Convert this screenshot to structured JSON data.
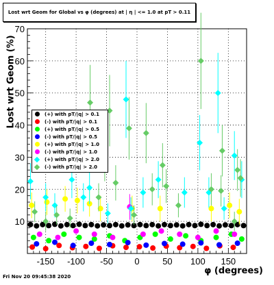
{
  "title": "Lost wrt Geom for Global vs φ (degrees) at | η | <= 1.0 at pT > 0.11",
  "footer": "Fri Nov 20 09:45:38 2020",
  "chart_data": {
    "type": "scatter",
    "xlabel": "φ (degrees)",
    "ylabel": "Lost wrt Geom (%)",
    "xlim": [
      -180,
      180
    ],
    "ylim": [
      0,
      70
    ],
    "xticks": [
      -150,
      -100,
      -50,
      0,
      50,
      100,
      150
    ],
    "yticks": [
      10,
      20,
      30,
      40,
      50,
      60,
      70
    ],
    "grid": true,
    "legend_position": "left",
    "series": [
      {
        "name": "(+) with pT/|q| > 0.1",
        "color": "#000000",
        "marker": "dot",
        "points": [
          [
            -175,
            9
          ],
          [
            -165,
            8.6
          ],
          [
            -155,
            9
          ],
          [
            -145,
            8.7
          ],
          [
            -135,
            9.1
          ],
          [
            -125,
            8.6
          ],
          [
            -115,
            9
          ],
          [
            -105,
            8.7
          ],
          [
            -95,
            9.1
          ],
          [
            -85,
            8.7
          ],
          [
            -75,
            9
          ],
          [
            -65,
            8.6
          ],
          [
            -55,
            8.9
          ],
          [
            -45,
            8.7
          ],
          [
            -35,
            9
          ],
          [
            -25,
            8.6
          ],
          [
            -15,
            8.9
          ],
          [
            -5,
            8.7
          ],
          [
            5,
            9
          ],
          [
            15,
            8.7
          ],
          [
            25,
            9
          ],
          [
            35,
            8.6
          ],
          [
            45,
            9
          ],
          [
            55,
            8.7
          ],
          [
            65,
            8.9
          ],
          [
            75,
            8.6
          ],
          [
            85,
            9
          ],
          [
            95,
            8.7
          ],
          [
            105,
            9.1
          ],
          [
            115,
            8.7
          ],
          [
            125,
            9
          ],
          [
            135,
            8.6
          ],
          [
            145,
            8.9
          ],
          [
            155,
            8.7
          ],
          [
            165,
            9
          ],
          [
            175,
            8.7
          ]
        ]
      },
      {
        "name": "(-) with pT/|q| > 0.1",
        "color": "#ff0000",
        "marker": "dot",
        "points": [
          [
            -172,
            2
          ],
          [
            -150,
            1.5
          ],
          [
            -128,
            2.5
          ],
          [
            -106,
            1.8
          ],
          [
            -84,
            2.2
          ],
          [
            -62,
            1.6
          ],
          [
            -40,
            2.4
          ],
          [
            -18,
            1.9
          ],
          [
            4,
            2.1
          ],
          [
            26,
            1.7
          ],
          [
            48,
            2.3
          ],
          [
            70,
            1.8
          ],
          [
            92,
            2.2
          ],
          [
            114,
            1.6
          ],
          [
            136,
            2.4
          ],
          [
            158,
            1.9
          ]
        ]
      },
      {
        "name": "(+) with pT/|q| > 0.5",
        "color": "#00ff00",
        "marker": "dot",
        "points": [
          [
            -170,
            5
          ],
          [
            -145,
            4
          ],
          [
            -120,
            6
          ],
          [
            -95,
            5
          ],
          [
            -70,
            4.5
          ],
          [
            -45,
            5.5
          ],
          [
            -20,
            4
          ],
          [
            5,
            5
          ],
          [
            30,
            6
          ],
          [
            55,
            4.5
          ],
          [
            80,
            5.5
          ],
          [
            105,
            4
          ],
          [
            130,
            5
          ],
          [
            155,
            6
          ],
          [
            172,
            4.5
          ]
        ]
      },
      {
        "name": "(-) with pT/|q| > 0.5",
        "color": "#0000ff",
        "marker": "dot",
        "points": [
          [
            -165,
            3
          ],
          [
            -135,
            3.5
          ],
          [
            -105,
            2.5
          ],
          [
            -75,
            3.2
          ],
          [
            -45,
            2.8
          ],
          [
            -15,
            3.4
          ],
          [
            15,
            2.6
          ],
          [
            45,
            3.1
          ],
          [
            75,
            2.9
          ],
          [
            105,
            3.3
          ],
          [
            135,
            2.7
          ],
          [
            165,
            3.2
          ]
        ]
      },
      {
        "name": "(+) with pT/|q| > 1.0",
        "color": "#ffff00",
        "marker": "dot",
        "points": [
          [
            -173,
            15
          ],
          [
            -148,
            16
          ],
          [
            -118,
            17
          ],
          [
            -98,
            16.5
          ],
          [
            -78,
            15.5
          ],
          [
            -60,
            14
          ],
          [
            -8,
            14
          ],
          [
            38,
            14
          ],
          [
            122,
            14
          ],
          [
            152,
            15
          ],
          [
            168,
            13
          ]
        ]
      },
      {
        "name": "(-) with pT/|q| > 1.0",
        "color": "#ff00ff",
        "marker": "dot",
        "points": [
          [
            -160,
            6
          ],
          [
            -130,
            5
          ],
          [
            -100,
            7
          ],
          [
            -70,
            6
          ],
          [
            -40,
            5
          ],
          [
            -12,
            14.5
          ],
          [
            10,
            6
          ],
          [
            40,
            7
          ],
          [
            70,
            6
          ],
          [
            100,
            5
          ],
          [
            130,
            7
          ],
          [
            160,
            6
          ]
        ]
      },
      {
        "name": "(+) with pT/|q| > 2.0",
        "color": "#00ffff",
        "marker": "diamond",
        "points": [
          [
            -175,
            22.5
          ],
          [
            -150,
            17.5
          ],
          [
            -135,
            15
          ],
          [
            -107,
            23
          ],
          [
            -88,
            17.5
          ],
          [
            -78,
            20.5
          ],
          [
            -48,
            12.5
          ],
          [
            -18,
            48
          ],
          [
            -10,
            14
          ],
          [
            10,
            19
          ],
          [
            35,
            23
          ],
          [
            78,
            19
          ],
          [
            103,
            34.5
          ],
          [
            118,
            19
          ],
          [
            133,
            50
          ],
          [
            143,
            14
          ],
          [
            160,
            30.5
          ],
          [
            172,
            23
          ]
        ]
      },
      {
        "name": "(-) with pT/|q| > 2.0",
        "color": "#66cc66",
        "marker": "diamond",
        "points": [
          [
            -168,
            13
          ],
          [
            -150,
            10
          ],
          [
            -132,
            12
          ],
          [
            -110,
            11
          ],
          [
            -77,
            47
          ],
          [
            -63,
            17.5
          ],
          [
            -53,
            30
          ],
          [
            -45,
            44.5
          ],
          [
            -35,
            22
          ],
          [
            -13,
            39
          ],
          [
            -5,
            12
          ],
          [
            15,
            37.5
          ],
          [
            25,
            20
          ],
          [
            42,
            27.5
          ],
          [
            48,
            21
          ],
          [
            68,
            15
          ],
          [
            105,
            60
          ],
          [
            122,
            20
          ],
          [
            138,
            19.5
          ],
          [
            140,
            32
          ],
          [
            160,
            10
          ],
          [
            165,
            26
          ],
          [
            170,
            23.5
          ]
        ]
      }
    ]
  }
}
